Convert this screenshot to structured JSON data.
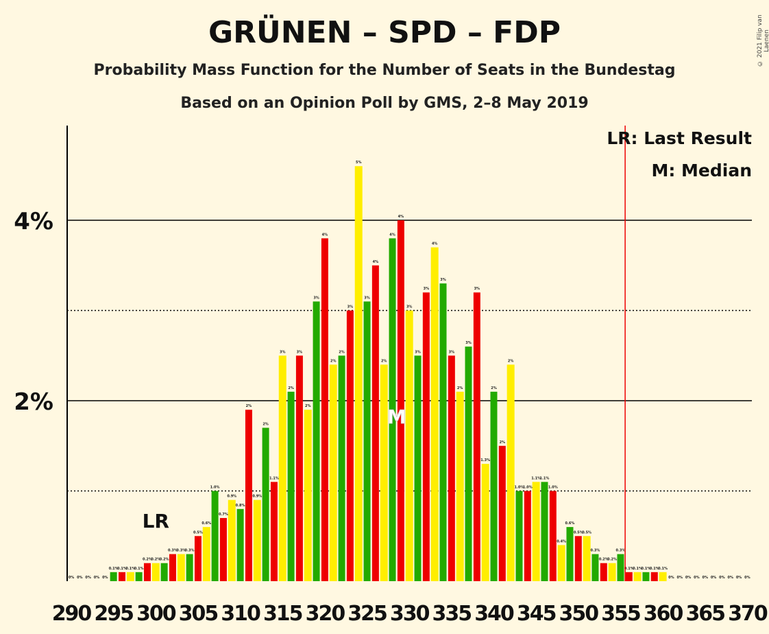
{
  "header": {
    "title": "GRÜNEN – SPD – FDP",
    "subtitle": "Probability Mass Function for the Number of Seats in the Bundestag",
    "subtitle2": "Based on an Opinion Poll by GMS, 2–8 May 2019",
    "copyright": "© 2021 Filip van Laenen"
  },
  "legend": {
    "lr": "LR: Last Result",
    "median": "M: Median"
  },
  "colors": {
    "background": "#FFF8E1",
    "red": "#EE0000",
    "yellow": "#FFEE00",
    "green": "#22AA00",
    "majority_line": "#EE0000"
  },
  "chart_data": {
    "type": "bar",
    "x_start": 290,
    "x_end": 370,
    "x_tick_labels": [
      "290",
      "295",
      "300",
      "305",
      "310",
      "315",
      "320",
      "325",
      "330",
      "335",
      "340",
      "345",
      "350",
      "355",
      "360",
      "365",
      "370"
    ],
    "y_tick_labels": [
      "2%",
      "4%"
    ],
    "ylim": [
      0,
      5.05
    ],
    "gridlines_solid": [
      2,
      4
    ],
    "gridlines_dotted": [
      1,
      3
    ],
    "values": [
      0.0,
      0.0,
      0.0,
      0.0,
      0.0,
      0.1,
      0.1,
      0.1,
      0.1,
      0.2,
      0.2,
      0.2,
      0.3,
      0.3,
      0.3,
      0.5,
      0.6,
      1.0,
      0.7,
      0.9,
      0.8,
      1.9,
      0.9,
      1.7,
      1.1,
      2.5,
      2.1,
      2.5,
      1.9,
      3.1,
      3.8,
      2.4,
      2.5,
      3.0,
      4.6,
      3.1,
      3.5,
      2.4,
      3.8,
      4.0,
      3.0,
      2.5,
      3.2,
      3.7,
      3.3,
      2.5,
      2.1,
      2.6,
      3.2,
      1.3,
      2.1,
      1.5,
      2.4,
      1.0,
      1.0,
      1.1,
      1.1,
      1.0,
      0.4,
      0.6,
      0.5,
      0.5,
      0.3,
      0.2,
      0.2,
      0.3,
      0.1,
      0.1,
      0.1,
      0.1,
      0.1,
      0.0,
      0.0,
      0.0,
      0.0,
      0.0,
      0.0,
      0.0,
      0.0,
      0.0,
      0.0
    ],
    "value_labels": [
      "0%",
      "0%",
      "0%",
      "0%",
      "0%",
      "0.1%",
      "0.1%",
      "0.1%",
      "0.1%",
      "0.2%",
      "0.2%",
      "0.2%",
      "0.3%",
      "0.3%",
      "0.3%",
      "0.5%",
      "0.6%",
      "1.0%",
      "0.7%",
      "0.9%",
      "0.8%",
      "2%",
      "0.9%",
      "2%",
      "1.1%",
      "3%",
      "2%",
      "3%",
      "2%",
      "3%",
      "4%",
      "2%",
      "2%",
      "3%",
      "5%",
      "3%",
      "4%",
      "2%",
      "4%",
      "4%",
      "3%",
      "3%",
      "3%",
      "4%",
      "3%",
      "3%",
      "2%",
      "3%",
      "3%",
      "1.3%",
      "2%",
      "2%",
      "2%",
      "1.0%",
      "1.0%",
      "1.1%",
      "1.1%",
      "1.0%",
      "0.4%",
      "0.6%",
      "0.5%",
      "0.5%",
      "0.3%",
      "0.2%",
      "0.2%",
      "0.3%",
      "0.1%",
      "0.1%",
      "0.1%",
      "0.1%",
      "0.1%",
      "0%",
      "0%",
      "0%",
      "0%",
      "0%",
      "0%",
      "0%",
      "0%",
      "0%",
      "0%"
    ],
    "last_result": 300,
    "last_result_label": "LR",
    "median": 329,
    "median_label": "M",
    "majority_threshold": 355
  }
}
